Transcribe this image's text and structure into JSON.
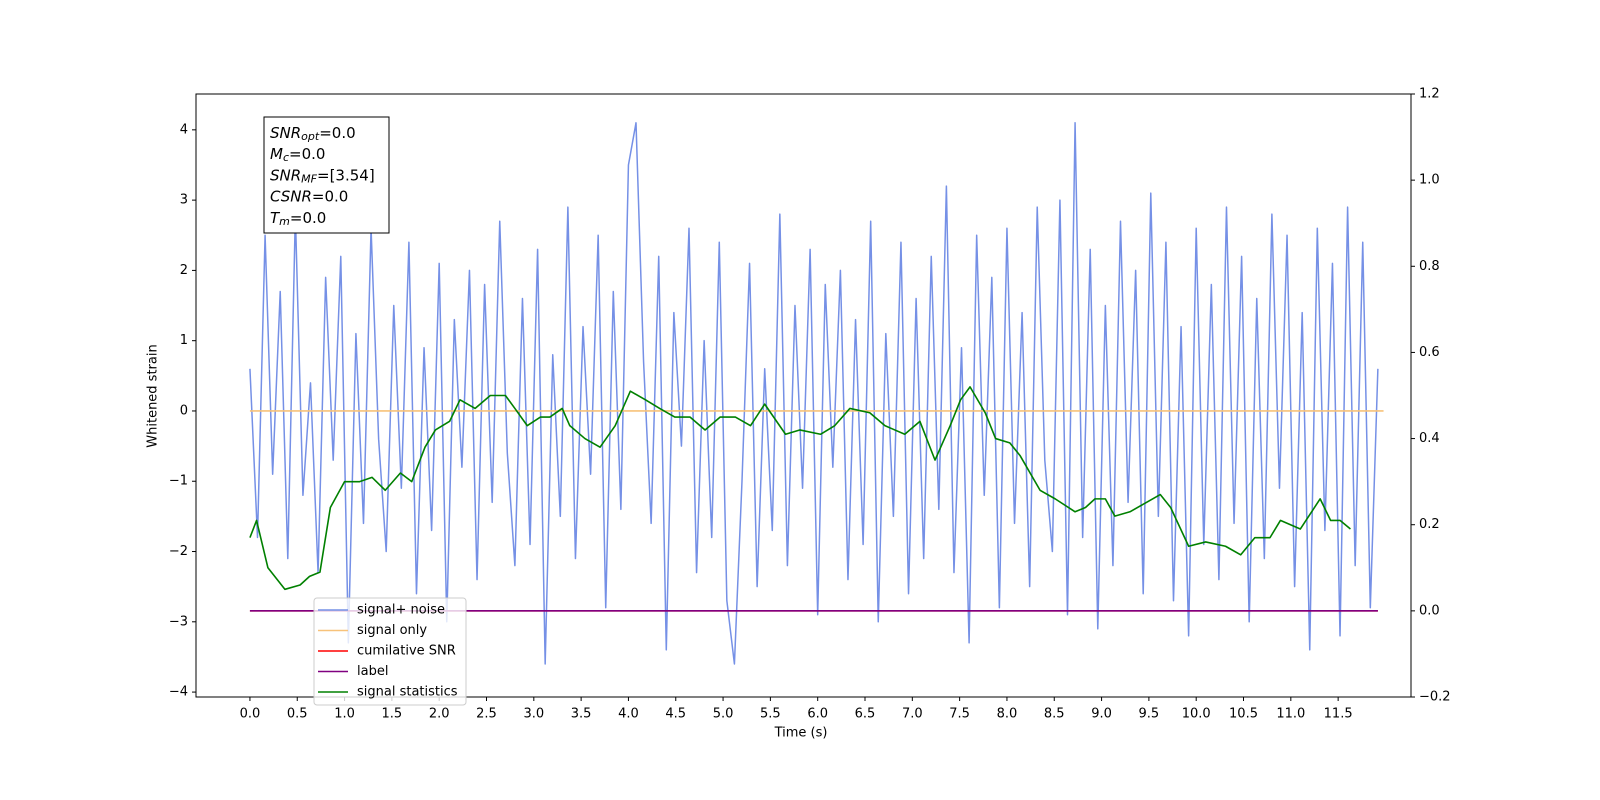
{
  "chart_data": {
    "type": "line",
    "x_label": "Time (s)",
    "y_label": "Whitened strain",
    "xlim": [
      -0.57,
      12.27
    ],
    "ylim": [
      -4.07,
      4.51
    ],
    "y2lim": [
      -0.2,
      1.2
    ],
    "xticks": [
      {
        "value": 0,
        "label": "0.0"
      },
      0.5,
      {
        "value": 1,
        "label": "1.0"
      },
      1.5,
      {
        "value": 2,
        "label": "2.0"
      },
      2.5,
      {
        "value": 3,
        "label": "3.0"
      },
      3.5,
      {
        "value": 4,
        "label": "4.0"
      },
      4.5,
      {
        "value": 5,
        "label": "5.0"
      },
      5.5,
      {
        "value": 6,
        "label": "6.0"
      },
      6.5,
      {
        "value": 7,
        "label": "7.0"
      },
      7.5,
      {
        "value": 8,
        "label": "8.0"
      },
      8.5,
      {
        "value": 9,
        "label": "9.0"
      },
      9.5,
      {
        "value": 10,
        "label": "10.0"
      },
      10.5,
      {
        "value": 11,
        "label": "11.0"
      },
      11.5
    ],
    "yticks": [
      {
        "value": -4,
        "label": "−4"
      },
      {
        "value": -3,
        "label": "−3"
      },
      {
        "value": -2,
        "label": "−2"
      },
      {
        "value": -1,
        "label": "−1"
      },
      0,
      1,
      2,
      3,
      4
    ],
    "y2ticks": [
      {
        "value": -0.2,
        "label": "−0.2"
      },
      {
        "value": 0,
        "label": "0.0"
      },
      0.2,
      0.4,
      0.6,
      0.8,
      {
        "value": 1,
        "label": "1.0"
      },
      1.2
    ],
    "legend": "lower left",
    "series": [
      {
        "name": "signal+ noise",
        "color": "#7590e6",
        "x": [
          0,
          0.08,
          0.16,
          0.24,
          0.32,
          0.4,
          0.48,
          0.56,
          0.64,
          0.72,
          0.8,
          0.88,
          0.96,
          1.04,
          1.12,
          1.2,
          1.28,
          1.36,
          1.44,
          1.52,
          1.6,
          1.68,
          1.76,
          1.84,
          1.92,
          2,
          2.08,
          2.16,
          2.24,
          2.32,
          2.4,
          2.48,
          2.56,
          2.64,
          2.72,
          2.8,
          2.88,
          2.96,
          3.04,
          3.12,
          3.2,
          3.28,
          3.36,
          3.44,
          3.52,
          3.6,
          3.68,
          3.76,
          3.84,
          3.92,
          4,
          4.08,
          4.16,
          4.24,
          4.32,
          4.4,
          4.48,
          4.56,
          4.64,
          4.72,
          4.8,
          4.88,
          4.96,
          5.04,
          5.12,
          5.2,
          5.28,
          5.36,
          5.44,
          5.52,
          5.6,
          5.68,
          5.76,
          5.84,
          5.92,
          6,
          6.08,
          6.16,
          6.24,
          6.32,
          6.4,
          6.48,
          6.56,
          6.64,
          6.72,
          6.8,
          6.88,
          6.96,
          7.04,
          7.12,
          7.2,
          7.28,
          7.36,
          7.44,
          7.52,
          7.6,
          7.68,
          7.76,
          7.84,
          7.92,
          8,
          8.08,
          8.16,
          8.24,
          8.32,
          8.4,
          8.48,
          8.56,
          8.64,
          8.72,
          8.8,
          8.88,
          8.96,
          9.04,
          9.12,
          9.2,
          9.28,
          9.36,
          9.44,
          9.52,
          9.6,
          9.68,
          9.76,
          9.84,
          9.92,
          10,
          10.08,
          10.16,
          10.24,
          10.32,
          10.4,
          10.48,
          10.56,
          10.64,
          10.72,
          10.8,
          10.88,
          10.96,
          11.04,
          11.12,
          11.2,
          11.28,
          11.36,
          11.44,
          11.52,
          11.6,
          11.68,
          11.76,
          11.84,
          11.92
        ],
        "values": [
          0.6,
          -1.8,
          2.5,
          -0.9,
          1.7,
          -2.1,
          2.8,
          -1.2,
          0.4,
          -2.3,
          1.9,
          -0.7,
          2.2,
          -3.3,
          1.1,
          -1.6,
          2.6,
          -0.4,
          -2.0,
          1.5,
          -1.1,
          2.4,
          -2.6,
          0.9,
          -1.7,
          2.1,
          -3.0,
          1.3,
          -0.8,
          2.0,
          -2.4,
          1.8,
          -1.3,
          2.7,
          -0.6,
          -2.2,
          1.6,
          -1.9,
          2.3,
          -3.6,
          0.8,
          -1.5,
          2.9,
          -2.1,
          1.2,
          -0.9,
          2.5,
          -2.8,
          1.7,
          -1.4,
          3.5,
          4.1,
          0.7,
          -1.6,
          2.2,
          -3.4,
          1.4,
          -0.5,
          2.6,
          -2.3,
          1.0,
          -1.8,
          2.4,
          -2.7,
          -3.6,
          -1.0,
          2.1,
          -2.5,
          0.6,
          -1.7,
          2.8,
          -2.2,
          1.5,
          -1.1,
          2.3,
          -2.9,
          1.8,
          -0.8,
          2.0,
          -2.4,
          1.3,
          -1.9,
          2.7,
          -3.0,
          1.1,
          -1.5,
          2.4,
          -2.6,
          1.6,
          -2.1,
          2.2,
          -1.4,
          3.2,
          -2.3,
          0.9,
          -3.3,
          2.5,
          -1.2,
          1.9,
          -2.8,
          2.6,
          -1.6,
          1.4,
          -2.5,
          2.9,
          -0.7,
          -2.0,
          3.0,
          -2.9,
          4.1,
          -1.8,
          2.3,
          -3.1,
          1.5,
          -2.2,
          2.7,
          -1.3,
          2.0,
          -2.6,
          3.1,
          -1.5,
          2.4,
          -2.7,
          1.2,
          -3.2,
          2.6,
          -1.9,
          1.8,
          -2.4,
          2.9,
          -1.6,
          2.2,
          -3.0,
          1.6,
          -2.1,
          2.8,
          -1.1,
          2.5,
          -2.5,
          1.4,
          -3.4,
          2.6,
          -1.7,
          2.1,
          -3.2,
          2.9,
          -2.2,
          2.4,
          -2.8,
          0.6
        ]
      },
      {
        "name": "signal only",
        "color": "#f7c27a",
        "x": [
          0,
          11.98
        ],
        "values": [
          0,
          0
        ]
      },
      {
        "name": "cumilative SNR",
        "color": "#ff0000",
        "axis": "y2",
        "x": [
          0,
          11.92
        ],
        "values": [
          0,
          0
        ]
      },
      {
        "name": "label",
        "color": "#800080",
        "axis": "y2",
        "x": [
          0,
          11.92
        ],
        "values": [
          0,
          0
        ]
      },
      {
        "name": "signal statistics",
        "color": "#008000",
        "axis": "y2",
        "x": [
          0,
          0.07,
          0.19,
          0.37,
          0.53,
          0.63,
          0.74,
          0.85,
          1.0,
          1.16,
          1.29,
          1.43,
          1.59,
          1.71,
          1.85,
          1.96,
          2.11,
          2.22,
          2.38,
          2.54,
          2.7,
          2.8,
          2.93,
          3.07,
          3.17,
          3.3,
          3.38,
          3.54,
          3.7,
          3.86,
          4.02,
          4.18,
          4.33,
          4.49,
          4.65,
          4.81,
          4.97,
          5.13,
          5.29,
          5.44,
          5.66,
          5.81,
          6.03,
          6.18,
          6.34,
          6.55,
          6.71,
          6.92,
          7.08,
          7.24,
          7.4,
          7.51,
          7.61,
          7.77,
          7.88,
          8.03,
          8.14,
          8.35,
          8.51,
          8.72,
          8.83,
          8.93,
          9.04,
          9.14,
          9.3,
          9.46,
          9.62,
          9.73,
          9.92,
          10.1,
          10.31,
          10.47,
          10.62,
          10.78,
          10.89,
          11.1,
          11.31,
          11.42,
          11.52,
          11.63
        ],
        "values": [
          0.17,
          0.21,
          0.1,
          0.05,
          0.06,
          0.08,
          0.09,
          0.24,
          0.3,
          0.3,
          0.31,
          0.28,
          0.32,
          0.3,
          0.38,
          0.42,
          0.44,
          0.49,
          0.47,
          0.5,
          0.5,
          0.47,
          0.43,
          0.45,
          0.45,
          0.47,
          0.43,
          0.4,
          0.38,
          0.43,
          0.51,
          0.49,
          0.47,
          0.45,
          0.45,
          0.42,
          0.45,
          0.45,
          0.43,
          0.48,
          0.41,
          0.42,
          0.41,
          0.43,
          0.47,
          0.46,
          0.43,
          0.41,
          0.44,
          0.35,
          0.43,
          0.49,
          0.52,
          0.46,
          0.4,
          0.39,
          0.36,
          0.28,
          0.26,
          0.23,
          0.24,
          0.26,
          0.26,
          0.22,
          0.23,
          0.25,
          0.27,
          0.24,
          0.15,
          0.16,
          0.15,
          0.13,
          0.17,
          0.17,
          0.21,
          0.19,
          0.26,
          0.21,
          0.21,
          0.19
        ]
      }
    ],
    "annotations": [
      {
        "symbol": "SNR",
        "subscript": "opt",
        "text": "=0.0"
      },
      {
        "symbol": "M",
        "subscript": "c",
        "text": "=0.0"
      },
      {
        "symbol": "SNR",
        "subscript": "MF",
        "text": "=[3.54]"
      },
      {
        "symbol": "CSNR",
        "text": "=0.0"
      },
      {
        "symbol": "T",
        "subscript": "m",
        "text": "=0.0"
      }
    ]
  }
}
